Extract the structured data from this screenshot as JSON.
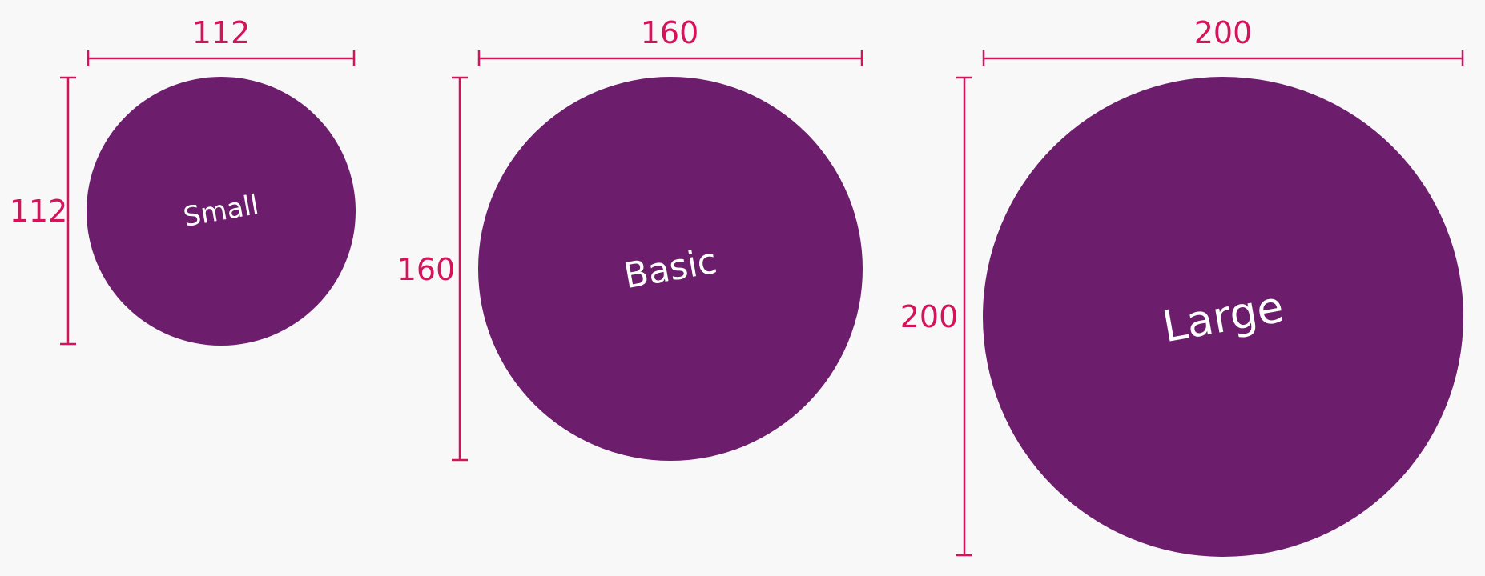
{
  "colors": {
    "background": "#f8f8f9",
    "circle_fill": "#6c1d6c",
    "dimension_color": "#d4145a",
    "label_color": "#ffffff"
  },
  "shapes": [
    {
      "id": "small",
      "label": "Small",
      "width_label": "112",
      "height_label": "112"
    },
    {
      "id": "basic",
      "label": "Basic",
      "width_label": "160",
      "height_label": "160"
    },
    {
      "id": "large",
      "label": "Large",
      "width_label": "200",
      "height_label": "200"
    }
  ]
}
